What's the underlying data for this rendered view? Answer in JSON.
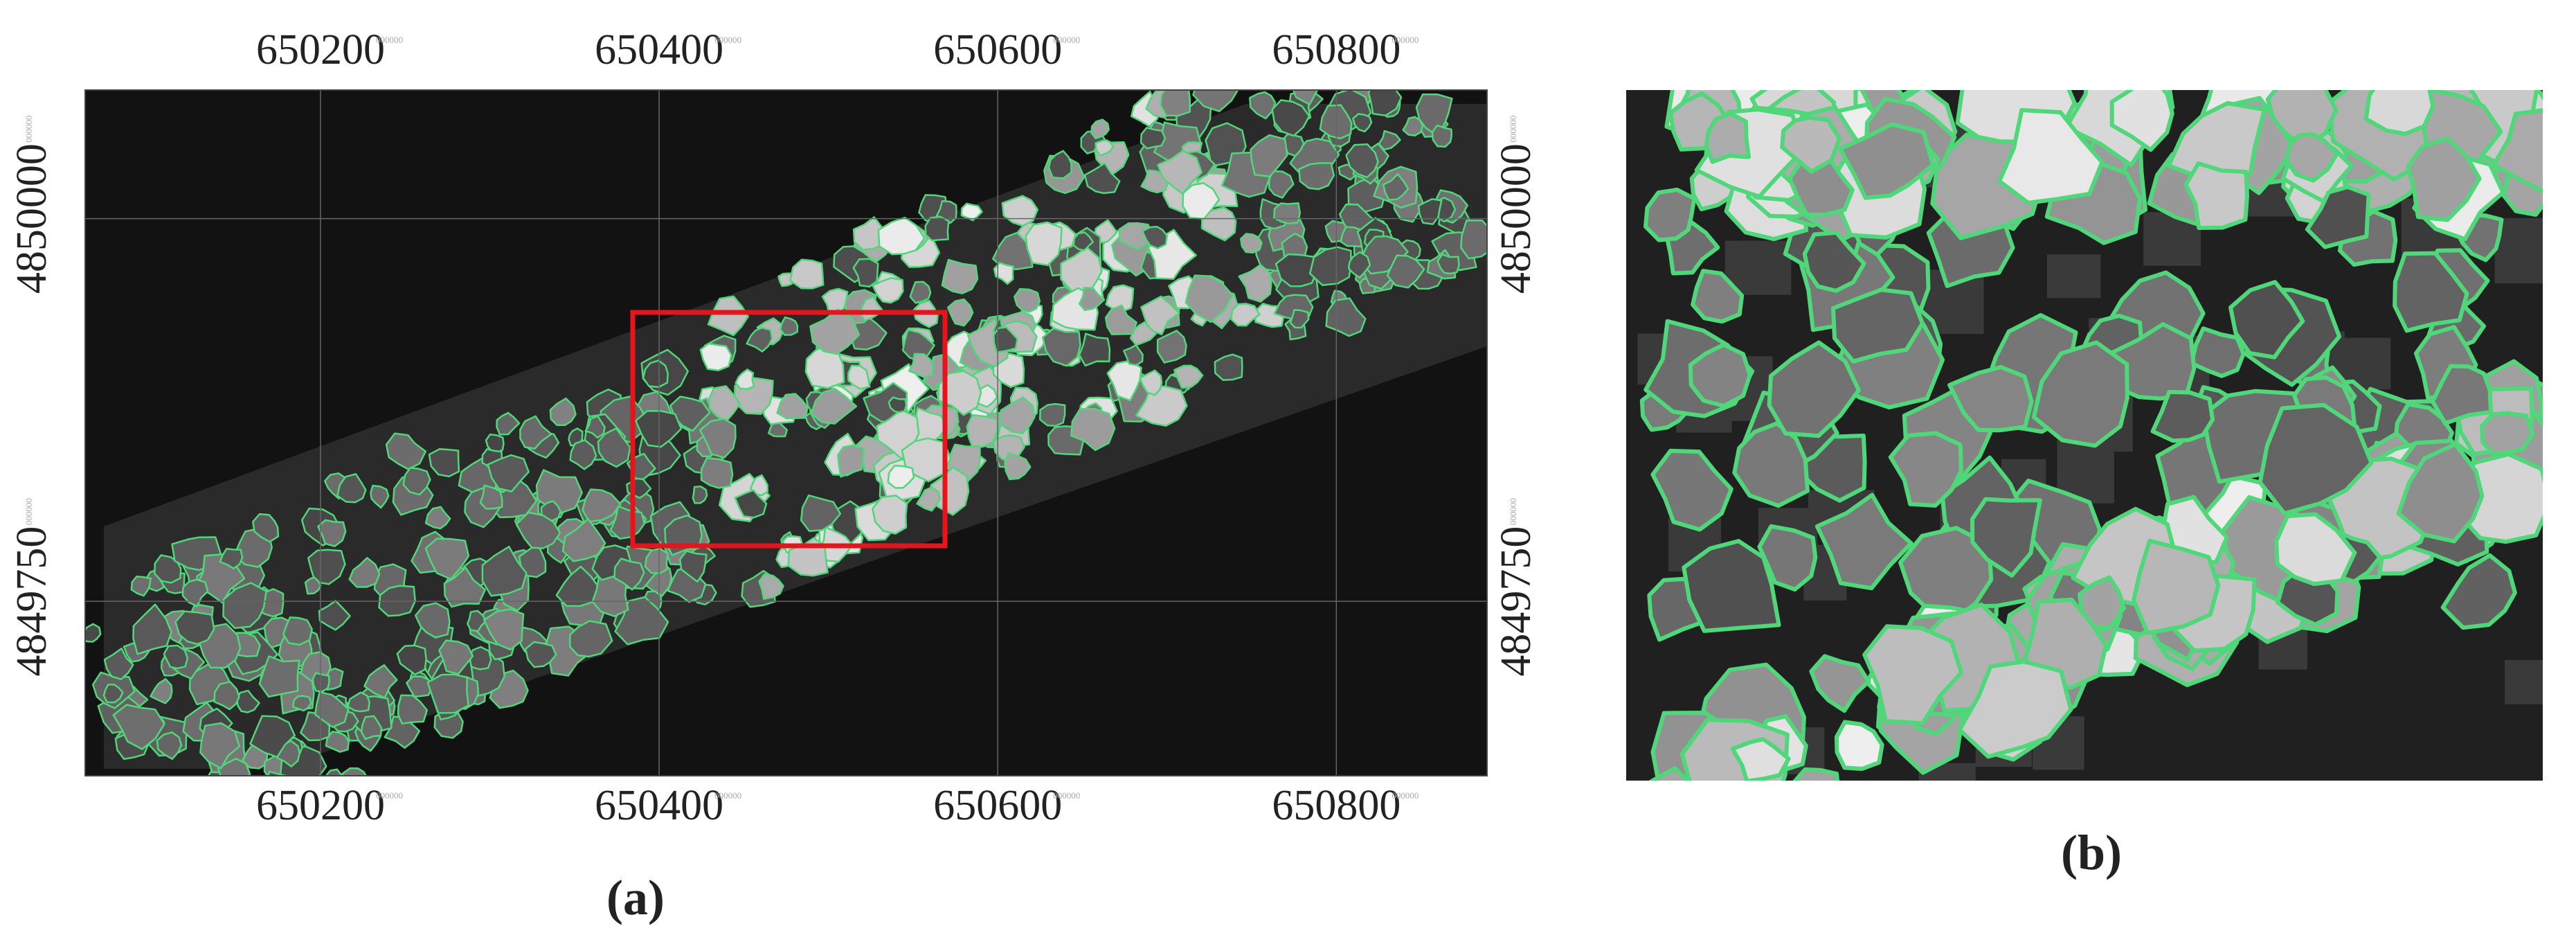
{
  "panel_a": {
    "caption": "(a)",
    "xticks": [
      650200,
      650400,
      650600,
      650800
    ],
    "yticks": [
      4850000,
      4849750
    ],
    "xlim": [
      650061,
      650889
    ],
    "ylim": [
      4849636,
      4850084
    ],
    "tick_note": "000000"
  },
  "panel_b": {
    "caption": "(b)"
  }
}
